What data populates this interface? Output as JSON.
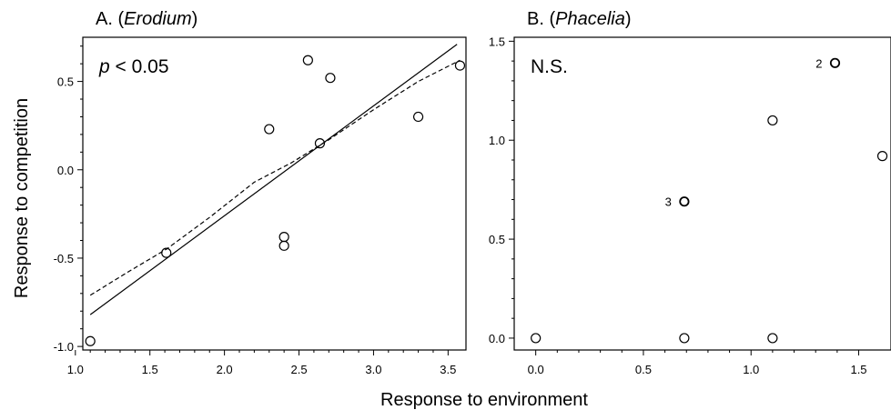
{
  "shared": {
    "xlabel": "Response to environment",
    "ylabel": "Response to competition"
  },
  "chart_data": [
    {
      "type": "scatter",
      "title_prefix": "A. (",
      "title_italic": "Erodium",
      "title_suffix": ")",
      "annotation_italic": "p",
      "annotation_rest": " < 0.05",
      "xlim": [
        1.05,
        3.62
      ],
      "ylim": [
        -1.02,
        0.75
      ],
      "xticks": [
        1.0,
        1.5,
        2.0,
        2.5,
        3.0,
        3.5
      ],
      "xtick_labels": [
        "1.0",
        "1.5",
        "2.0",
        "2.5",
        "3.0",
        "3.5"
      ],
      "yticks": [
        -1.0,
        -0.5,
        0.0,
        0.5
      ],
      "ytick_labels": [
        "-1.0",
        "-0.5",
        "0.0",
        "0.5"
      ],
      "points": [
        {
          "x": 1.1,
          "y": -0.97
        },
        {
          "x": 1.61,
          "y": -0.47
        },
        {
          "x": 2.3,
          "y": 0.23
        },
        {
          "x": 2.4,
          "y": -0.38
        },
        {
          "x": 2.4,
          "y": -0.43
        },
        {
          "x": 2.56,
          "y": 0.62
        },
        {
          "x": 2.64,
          "y": 0.15
        },
        {
          "x": 2.71,
          "y": 0.52
        },
        {
          "x": 3.3,
          "y": 0.3
        },
        {
          "x": 3.58,
          "y": 0.59
        }
      ],
      "regression_line": [
        {
          "x": 1.1,
          "y": -0.82
        },
        {
          "x": 3.56,
          "y": 0.71
        }
      ],
      "smooth_line": [
        {
          "x": 1.1,
          "y": -0.71
        },
        {
          "x": 1.35,
          "y": -0.58
        },
        {
          "x": 1.61,
          "y": -0.45
        },
        {
          "x": 1.9,
          "y": -0.27
        },
        {
          "x": 2.2,
          "y": -0.07
        },
        {
          "x": 2.45,
          "y": 0.04
        },
        {
          "x": 2.7,
          "y": 0.17
        },
        {
          "x": 3.0,
          "y": 0.34
        },
        {
          "x": 3.3,
          "y": 0.5
        },
        {
          "x": 3.58,
          "y": 0.62
        }
      ]
    },
    {
      "type": "scatter",
      "title_prefix": "B. (",
      "title_italic": "Phacelia",
      "title_suffix": ")",
      "annotation_italic": "",
      "annotation_rest": "N.S.",
      "xlim": [
        -0.1,
        1.65
      ],
      "ylim": [
        -0.06,
        1.52
      ],
      "xticks": [
        0.0,
        0.5,
        1.0,
        1.5
      ],
      "xtick_labels": [
        "0.0",
        "0.5",
        "1.0",
        "1.5"
      ],
      "yticks": [
        0.0,
        0.5,
        1.0,
        1.5
      ],
      "ytick_labels": [
        "0.0",
        "0.5",
        "1.0",
        "1.5"
      ],
      "points": [
        {
          "x": 0.0,
          "y": 0.0
        },
        {
          "x": 0.69,
          "y": 0.0
        },
        {
          "x": 1.1,
          "y": 0.0
        },
        {
          "x": 0.69,
          "y": 0.69,
          "label": "3"
        },
        {
          "x": 1.1,
          "y": 1.1
        },
        {
          "x": 1.39,
          "y": 1.39,
          "label": "2"
        },
        {
          "x": 1.61,
          "y": 0.92
        }
      ]
    }
  ]
}
